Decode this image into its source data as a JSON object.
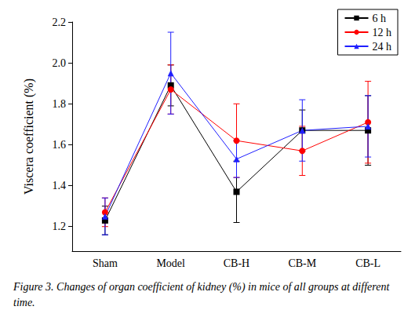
{
  "chart_data": {
    "type": "line",
    "caption": "Figure 3. Changes of organ coefficient of kidney (%) in mice of all groups at different time.",
    "y_label": "Viscera coefficient (%)",
    "categories": [
      "Sham",
      "Model",
      "CB-H",
      "CB-M",
      "CB-L"
    ],
    "series": [
      {
        "name": "6 h",
        "color": "#000000",
        "marker": "square",
        "values": [
          1.23,
          1.89,
          1.37,
          1.67,
          1.67
        ],
        "errors": [
          0.07,
          0.1,
          0.15,
          0.1,
          0.17
        ]
      },
      {
        "name": "12 h",
        "color": "#ff0000",
        "marker": "circle",
        "values": [
          1.27,
          1.87,
          1.62,
          1.57,
          1.71
        ],
        "errors": [
          0.07,
          0.12,
          0.18,
          0.12,
          0.2
        ]
      },
      {
        "name": "24 h",
        "color": "#1f1fff",
        "marker": "triangle",
        "values": [
          1.25,
          1.95,
          1.53,
          1.67,
          1.69
        ],
        "errors": [
          0.09,
          0.2,
          0.09,
          0.15,
          0.15
        ]
      }
    ],
    "ylim": [
      1.08,
      2.2
    ],
    "yticks": [
      1.2,
      1.4,
      1.6,
      1.8,
      {
        "value": 2,
        "label": "2.0"
      },
      2.2
    ],
    "grid": false,
    "legend": "upper right"
  }
}
